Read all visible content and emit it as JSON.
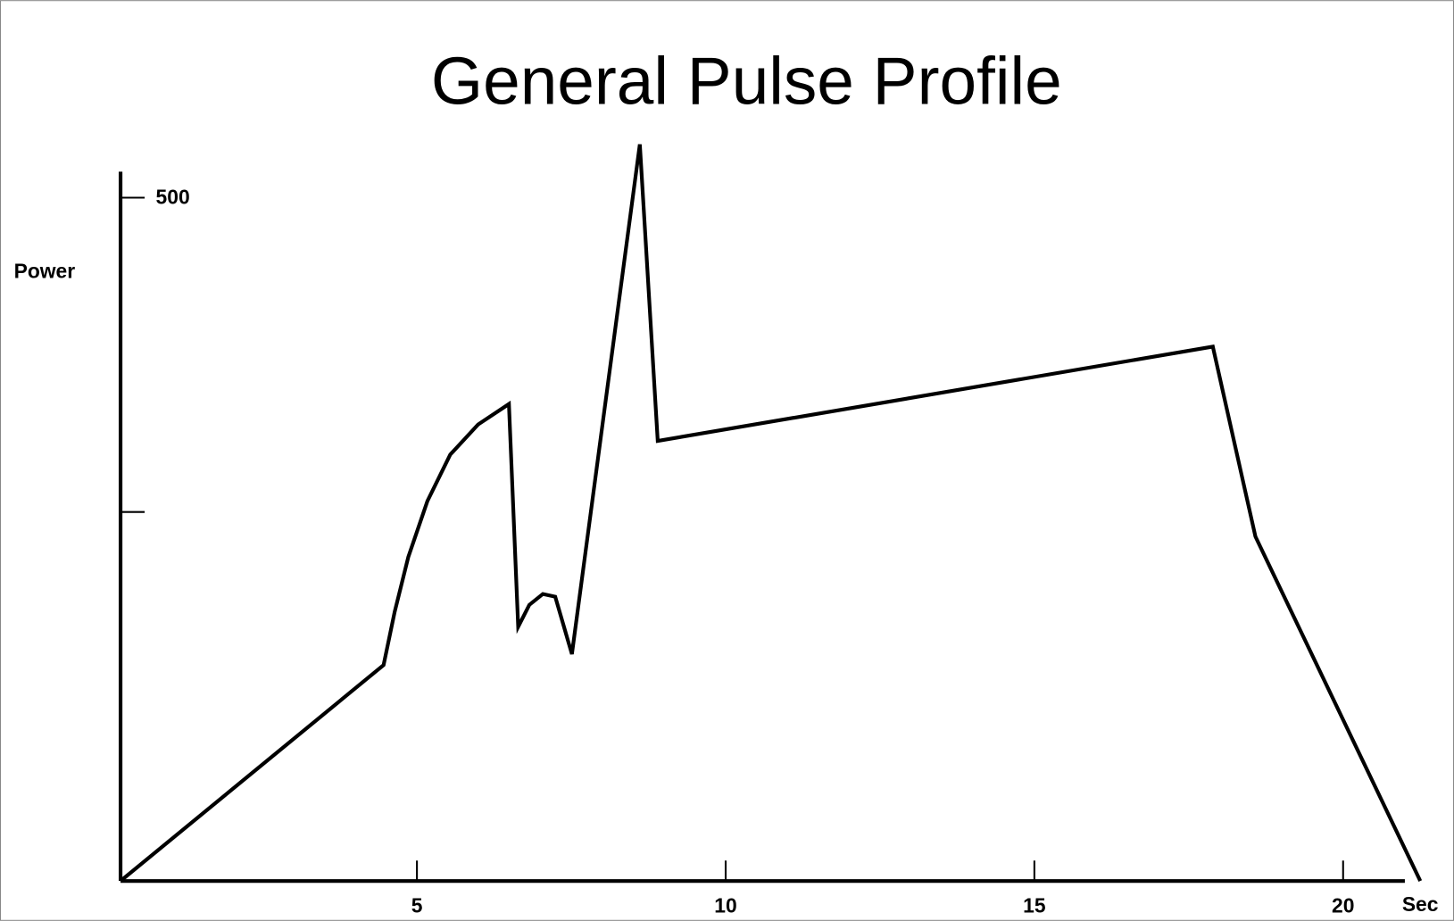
{
  "chart_data": {
    "type": "line",
    "title": "General Pulse Profile",
    "y_label": "Power",
    "x_label": "Sec",
    "x": [
      0.2,
      4.46,
      4.64,
      4.86,
      5.17,
      5.54,
      5.99,
      6.49,
      6.64,
      6.82,
      7.04,
      7.24,
      7.51,
      8.61,
      8.9,
      17.89,
      18.58,
      21.25
    ],
    "values": [
      0,
      158,
      197,
      237,
      278,
      312,
      334,
      349,
      186,
      202,
      210,
      208,
      166,
      539,
      322,
      391,
      252,
      0
    ],
    "color": "#000000",
    "xlim": [
      0.2,
      21
    ],
    "ylim": [
      0,
      519
    ],
    "xticks": [
      5,
      10,
      15,
      20
    ],
    "yticks": [
      {
        "value": 270
      },
      500
    ]
  }
}
